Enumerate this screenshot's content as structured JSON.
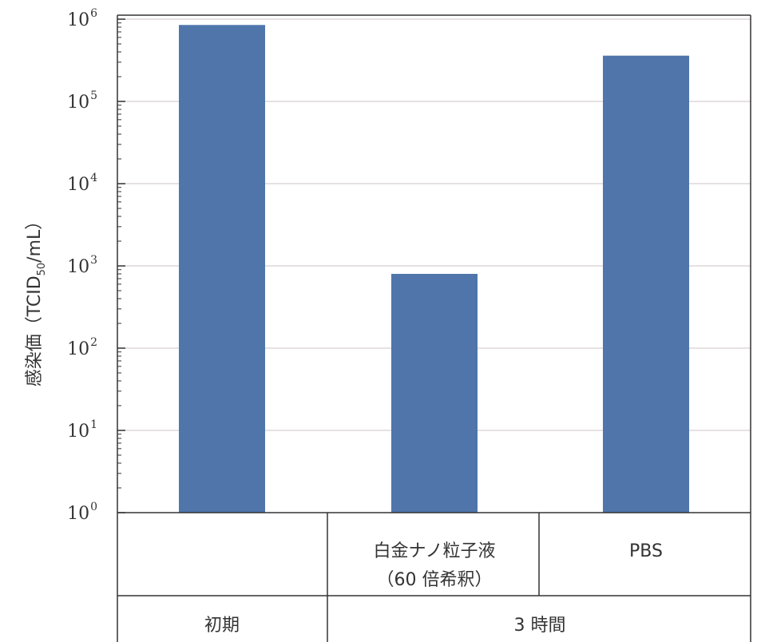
{
  "chart_data": {
    "type": "bar",
    "log_scale_y": true,
    "ylim": [
      1,
      1000000
    ],
    "ylabel": {
      "main": "感染価（TCID",
      "subscript": "50",
      "suffix": "/mL）"
    },
    "yticks": [
      {
        "value": 1,
        "base": "10",
        "exp": "0"
      },
      {
        "value": 10,
        "base": "10",
        "exp": "1"
      },
      {
        "value": 100,
        "base": "10",
        "exp": "2"
      },
      {
        "value": 1000,
        "base": "10",
        "exp": "3"
      },
      {
        "value": 10000,
        "base": "10",
        "exp": "4"
      },
      {
        "value": 100000,
        "base": "10",
        "exp": "5"
      },
      {
        "value": 1000000,
        "base": "10",
        "exp": "6"
      }
    ],
    "grid": true,
    "bar_color": "#4f75ab",
    "bars": [
      {
        "value": 850000
      },
      {
        "value": 800
      },
      {
        "value": 360000
      }
    ],
    "category_rows": [
      [
        "",
        "白金ナノ粒子液|（60 倍希釈）",
        "PBS"
      ],
      [
        "初期",
        "3 時間"
      ]
    ]
  }
}
